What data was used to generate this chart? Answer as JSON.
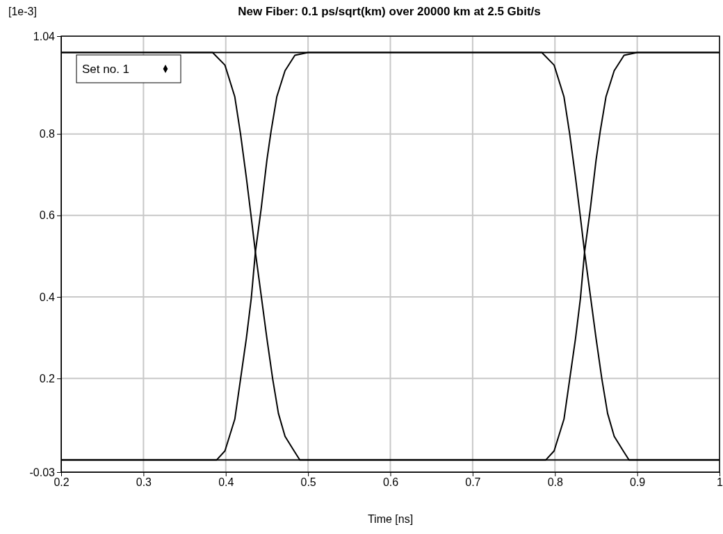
{
  "chart_data": {
    "type": "line",
    "title": "New Fiber:  0.1 ps/sqrt(km) over 20000 km at 2.5 Gbit/s",
    "xlabel": "Time [ns]",
    "annotations": [
      "[1e-3]"
    ],
    "xlim": [
      0.2,
      1
    ],
    "xticks": [
      0.2,
      0.3,
      0.4,
      0.5,
      0.6,
      0.7,
      0.8,
      0.9,
      1
    ],
    "ylim": [
      -0.03,
      1.04
    ],
    "yticks": [
      -0.03,
      0.2,
      0.4,
      0.6,
      0.8,
      1.04
    ],
    "grid": true,
    "legend": "top left",
    "series": [
      {
        "name": "Set no. 1",
        "color": "#000000",
        "x": [
          0.2,
          0.389,
          0.399,
          0.411,
          0.418,
          0.425,
          0.431,
          0.436,
          0.443,
          0.45,
          0.455,
          0.462,
          0.472,
          0.484,
          0.5,
          0.784,
          0.799,
          0.811,
          0.818,
          0.825,
          0.831,
          0.836,
          0.843,
          0.85,
          0.857,
          0.864,
          0.872,
          0.883,
          0.89,
          1
        ],
        "values": [
          0,
          0,
          0.022,
          0.1,
          0.199,
          0.298,
          0.397,
          0.51,
          0.616,
          0.736,
          0.806,
          0.891,
          0.955,
          0.993,
          1,
          1,
          0.969,
          0.891,
          0.799,
          0.693,
          0.595,
          0.51,
          0.404,
          0.298,
          0.199,
          0.114,
          0.058,
          0.022,
          0,
          0
        ]
      },
      {
        "color": "#000000",
        "x": [
          0.2,
          0.384,
          0.399,
          0.411,
          0.418,
          0.425,
          0.431,
          0.436,
          0.443,
          0.45,
          0.457,
          0.464,
          0.472,
          0.483,
          0.49,
          0.789,
          0.799,
          0.811,
          0.818,
          0.825,
          0.831,
          0.836,
          0.843,
          0.85,
          0.855,
          0.862,
          0.872,
          0.884,
          0.9,
          1
        ],
        "values": [
          1,
          1,
          0.969,
          0.891,
          0.799,
          0.693,
          0.595,
          0.51,
          0.404,
          0.298,
          0.199,
          0.114,
          0.058,
          0.022,
          0,
          0,
          0.022,
          0.1,
          0.199,
          0.298,
          0.397,
          0.51,
          0.616,
          0.736,
          0.806,
          0.891,
          0.955,
          0.993,
          1,
          1
        ]
      },
      {
        "color": "#000000",
        "x": [
          0.2,
          1
        ],
        "values": [
          1,
          1
        ]
      },
      {
        "color": "#000000",
        "x": [
          0.2,
          1
        ],
        "values": [
          0,
          0
        ]
      }
    ]
  }
}
